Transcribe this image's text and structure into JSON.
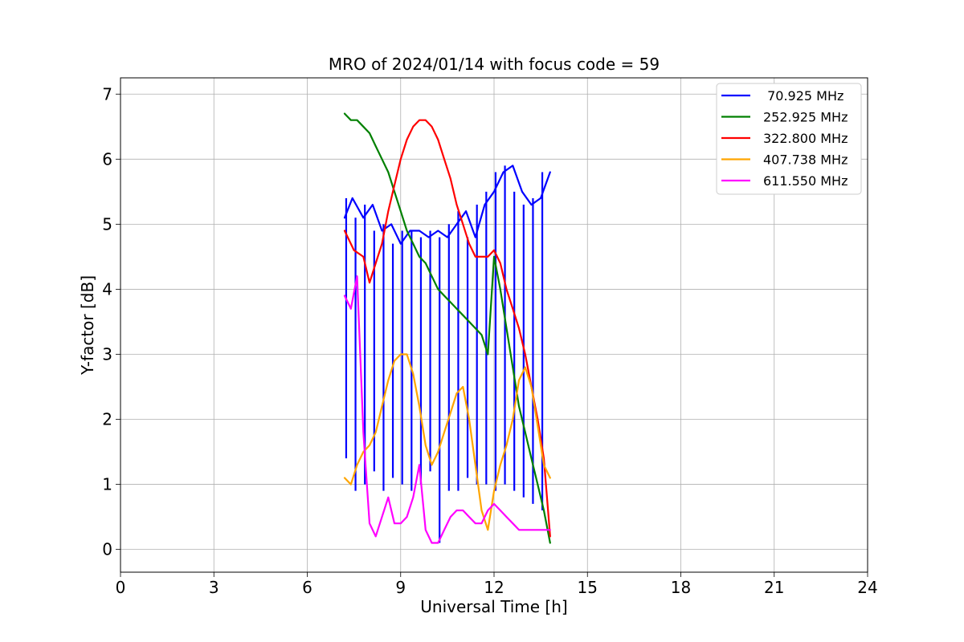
{
  "chart_data": {
    "type": "line",
    "title": "MRO of 2024/01/14 with focus code = 59",
    "xlabel": "Universal Time [h]",
    "ylabel": "Y-factor [dB]",
    "xlim": [
      0,
      24
    ],
    "ylim": [
      -0.35,
      7.25
    ],
    "xticks": [
      0,
      3,
      6,
      9,
      12,
      15,
      18,
      21,
      24
    ],
    "yticks": [
      0,
      1,
      2,
      3,
      4,
      5,
      6,
      7
    ],
    "grid": true,
    "legend_position": "top-right",
    "series": [
      {
        "name": " 70.925 MHz",
        "color": "#0000ff",
        "x": [
          7.2,
          7.45,
          7.8,
          8.1,
          8.4,
          8.7,
          9.0,
          9.3,
          9.6,
          9.9,
          10.2,
          10.5,
          10.8,
          11.1,
          11.4,
          11.7,
          12.0,
          12.3,
          12.6,
          12.9,
          13.2,
          13.5,
          13.8
        ],
        "y": [
          5.1,
          5.4,
          5.1,
          5.3,
          4.9,
          5.0,
          4.7,
          4.9,
          4.9,
          4.8,
          4.9,
          4.8,
          5.0,
          5.2,
          4.8,
          5.3,
          5.5,
          5.8,
          5.9,
          5.5,
          5.3,
          5.4,
          5.8
        ],
        "dips_x": [
          7.25,
          7.55,
          7.85,
          8.15,
          8.45,
          8.75,
          9.05,
          9.35,
          9.65,
          9.95,
          10.25,
          10.55,
          10.85,
          11.15,
          11.45,
          11.75,
          12.05,
          12.35,
          12.65,
          12.95,
          13.25,
          13.55
        ],
        "dips_y": [
          1.4,
          0.9,
          1.0,
          1.2,
          0.9,
          1.1,
          1.0,
          0.9,
          1.0,
          1.2,
          0.1,
          0.9,
          0.9,
          1.1,
          1.0,
          1.0,
          0.9,
          1.0,
          0.9,
          0.8,
          0.7,
          0.6
        ]
      },
      {
        "name": "252.925 MHz",
        "color": "#008000",
        "x": [
          7.2,
          7.4,
          7.6,
          7.8,
          8.0,
          8.2,
          8.4,
          8.6,
          8.8,
          9.0,
          9.2,
          9.4,
          9.6,
          9.8,
          10.0,
          10.2,
          10.4,
          10.6,
          10.8,
          11.0,
          11.2,
          11.4,
          11.6,
          11.8,
          12.0,
          12.2,
          12.4,
          12.6,
          12.8,
          13.0,
          13.2,
          13.4,
          13.6,
          13.8
        ],
        "y": [
          6.7,
          6.6,
          6.6,
          6.5,
          6.4,
          6.2,
          6.0,
          5.8,
          5.5,
          5.2,
          4.9,
          4.7,
          4.5,
          4.4,
          4.2,
          4.0,
          3.9,
          3.8,
          3.7,
          3.6,
          3.5,
          3.4,
          3.3,
          3.0,
          4.5,
          4.0,
          3.4,
          2.8,
          2.2,
          1.8,
          1.4,
          1.0,
          0.6,
          0.1
        ]
      },
      {
        "name": "322.800 MHz",
        "color": "#ff0000",
        "x": [
          7.2,
          7.5,
          7.8,
          8.0,
          8.2,
          8.4,
          8.6,
          8.8,
          9.0,
          9.2,
          9.4,
          9.6,
          9.8,
          10.0,
          10.2,
          10.4,
          10.6,
          10.8,
          11.0,
          11.2,
          11.4,
          11.6,
          11.8,
          12.0,
          12.2,
          12.4,
          12.6,
          12.8,
          13.0,
          13.2,
          13.4,
          13.6,
          13.8
        ],
        "y": [
          4.9,
          4.6,
          4.5,
          4.1,
          4.4,
          4.7,
          5.2,
          5.6,
          6.0,
          6.3,
          6.5,
          6.6,
          6.6,
          6.5,
          6.3,
          6.0,
          5.7,
          5.3,
          5.0,
          4.7,
          4.5,
          4.5,
          4.5,
          4.6,
          4.4,
          4.0,
          3.7,
          3.4,
          3.0,
          2.5,
          2.0,
          1.4,
          0.2
        ]
      },
      {
        "name": "407.738 MHz",
        "color": "#ffa500",
        "x": [
          7.2,
          7.4,
          7.6,
          7.8,
          8.0,
          8.2,
          8.4,
          8.6,
          8.8,
          9.0,
          9.2,
          9.4,
          9.6,
          9.8,
          10.0,
          10.2,
          10.4,
          10.6,
          10.8,
          11.0,
          11.2,
          11.4,
          11.6,
          11.8,
          12.0,
          12.2,
          12.4,
          12.6,
          12.8,
          13.0,
          13.2,
          13.4,
          13.6,
          13.8
        ],
        "y": [
          1.1,
          1.0,
          1.3,
          1.5,
          1.6,
          1.8,
          2.2,
          2.6,
          2.9,
          3.0,
          3.0,
          2.7,
          2.2,
          1.6,
          1.3,
          1.5,
          1.8,
          2.1,
          2.4,
          2.5,
          2.0,
          1.3,
          0.6,
          0.3,
          0.9,
          1.3,
          1.6,
          2.0,
          2.6,
          2.8,
          2.5,
          1.9,
          1.3,
          1.1
        ]
      },
      {
        "name": "611.550 MHz",
        "color": "#ff00ff",
        "x": [
          7.2,
          7.4,
          7.6,
          7.8,
          8.0,
          8.2,
          8.4,
          8.6,
          8.8,
          9.0,
          9.2,
          9.4,
          9.6,
          9.8,
          10.0,
          10.2,
          10.4,
          10.6,
          10.8,
          11.0,
          11.2,
          11.4,
          11.6,
          11.8,
          12.0,
          12.2,
          12.4,
          12.6,
          12.8,
          13.0,
          13.2,
          13.4,
          13.6,
          13.8
        ],
        "y": [
          3.9,
          3.7,
          4.2,
          1.8,
          0.4,
          0.2,
          0.5,
          0.8,
          0.4,
          0.4,
          0.5,
          0.8,
          1.3,
          0.3,
          0.1,
          0.1,
          0.3,
          0.5,
          0.6,
          0.6,
          0.5,
          0.4,
          0.4,
          0.6,
          0.7,
          0.6,
          0.5,
          0.4,
          0.3,
          0.3,
          0.3,
          0.3,
          0.3,
          0.3
        ]
      }
    ]
  }
}
